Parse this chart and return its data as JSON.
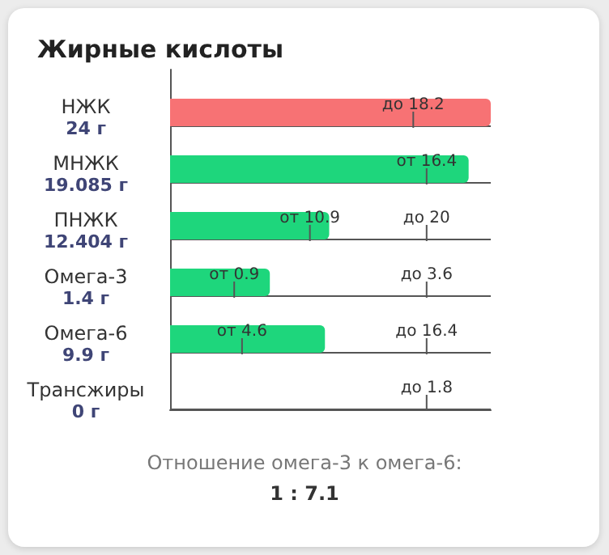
{
  "chart_data": {
    "type": "other",
    "title": "Жирные кислоты",
    "categories": [
      "НЖК",
      "МНЖК",
      "ПНЖК",
      "Омега-3",
      "Омега-6",
      "Трансжиры"
    ],
    "values": [
      24,
      19.085,
      12.404,
      1.4,
      9.9,
      0
    ],
    "value_labels": [
      "24 г",
      "19.085 г",
      "12.404 г",
      "1.4 г",
      "9.9 г",
      "0 г"
    ],
    "colors": [
      "#f77274",
      "#1ed67c",
      "#1ed67c",
      "#1ed67c",
      "#1ed67c",
      "#1ed67c"
    ],
    "annotations": [
      {
        "text": "до 18.2",
        "y": "НЖК"
      },
      {
        "text": "от 16.4",
        "y": "МНЖК"
      },
      {
        "text": "от 10.9",
        "y": "ПНЖК"
      },
      {
        "text": "до 20",
        "y": "ПНЖК"
      },
      {
        "text": "от 0.9",
        "y": "Омега-3"
      },
      {
        "text": "до 3.6",
        "y": "Омега-3"
      },
      {
        "text": "от 4.6",
        "y": "Омега-6"
      },
      {
        "text": "до 16.4",
        "y": "Омега-6"
      },
      {
        "text": "до 1.8",
        "y": "Трансжиры"
      },
      "Отношение омега-3 к омега-6:",
      "1 : 7.1"
    ]
  }
}
